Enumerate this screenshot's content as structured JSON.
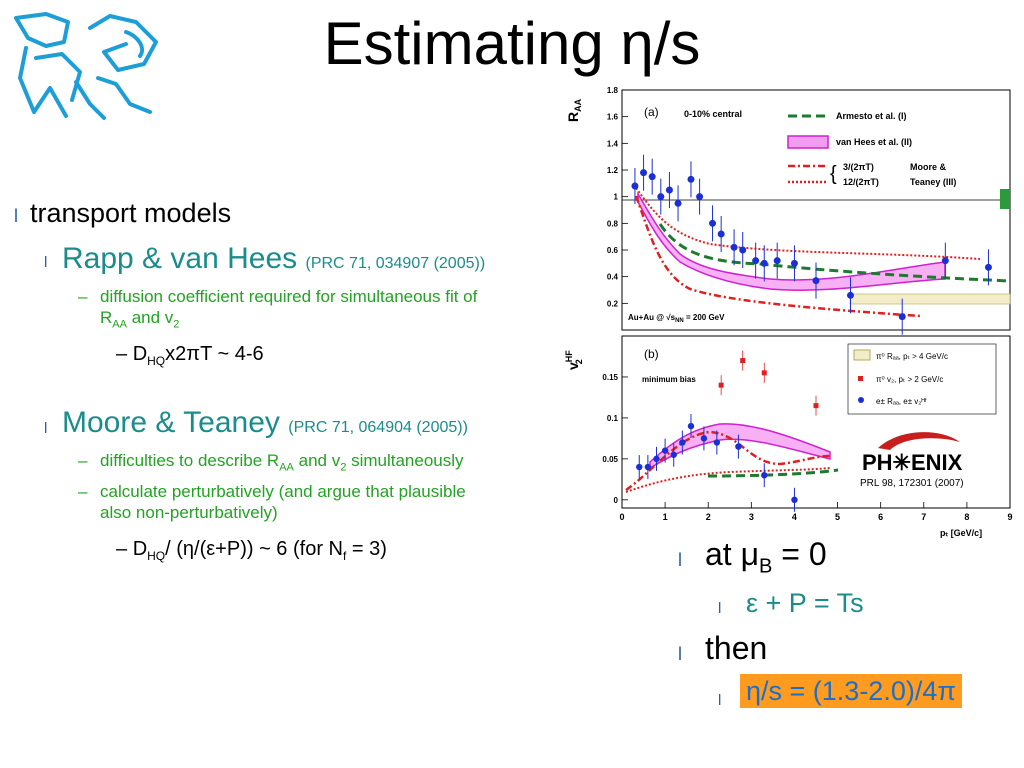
{
  "title": "Estimating η/s",
  "left": {
    "b1": "transport models",
    "rapp": "Rapp & van Hees",
    "rapp_ref": "(PRC 71, 034907 (2005))",
    "rapp_sub1": "diffusion coefficient required for simultaneous fit of",
    "rapp_sub2_a": "R",
    "rapp_sub2_b": "AA",
    "rapp_sub2_c": " and v",
    "rapp_sub2_d": "2",
    "rapp_d_a": "D",
    "rapp_d_b": "HQ",
    "rapp_d_c": "x2πT ~ 4-6",
    "moore": "Moore & Teaney",
    "moore_ref": "(PRC 71, 064904 (2005))",
    "moore_sub1_a": "difficulties to describe R",
    "moore_sub1_b": "AA",
    "moore_sub1_c": " and v",
    "moore_sub1_d": "2",
    "moore_sub1_e": " simultaneously",
    "moore_sub2": "calculate perturbatively (and argue that plausible",
    "moore_sub3": "also non-perturbatively)",
    "moore_d_a": "D",
    "moore_d_b": "HQ",
    "moore_d_c": "/ (η/(ε+P)) ~ 6   (for N",
    "moore_d_d": "f",
    "moore_d_e": " = 3)"
  },
  "right": {
    "at_a": "at μ",
    "at_b": "B",
    "at_c": " = 0",
    "eps": "ε + P = Ts",
    "then": "then",
    "result": "η/s = (1.3-2.0)/4π"
  },
  "bullets": {
    "l1": "l",
    "dash": "–"
  },
  "figure": {
    "top_ylabel": "R",
    "top_ylabel_sub": "AA",
    "top_panel": "(a)",
    "top_centrality": "0-10% central",
    "top_legend": [
      "Armesto et al. (I)",
      "van Hees et al. (II)",
      "3/(2πT)",
      "12/(2πT)",
      "Moore &",
      "Teaney (III)"
    ],
    "top_system": "Au+Au @ √s",
    "top_system_sub": "NN",
    "top_system_end": " = 200 GeV",
    "top_yticks": [
      "1.8",
      "1.6",
      "1.4",
      "1.2",
      "1",
      "0.8",
      "0.6",
      "0.4",
      "0.2"
    ],
    "bot_ylabel": "v",
    "bot_ylabel_sup": "HF",
    "bot_ylabel_sub": "2",
    "bot_panel": "(b)",
    "bot_bias": "minimum bias",
    "bot_yticks": [
      "0.15",
      "0.1",
      "0.05",
      "0"
    ],
    "bot_legend": [
      "π⁰ Rₐₐ, pₜ > 4 GeV/c",
      "π⁰ v₂, pₜ > 2 GeV/c",
      "e± Rₐₐ, e± v₂ᴴᶠ"
    ],
    "phenix": "PH✳ENIX",
    "prl": "PRL 98, 172301 (2007)",
    "xticks": [
      "0",
      "1",
      "2",
      "3",
      "4",
      "5",
      "6",
      "7",
      "8",
      "9"
    ],
    "xlabel": "pₜ [GeV/c]"
  },
  "chart_data": [
    {
      "type": "scatter",
      "title": "",
      "xlabel": "pT [GeV/c]",
      "ylabel": "RAA",
      "xlim": [
        0,
        9
      ],
      "ylim": [
        0,
        1.8
      ],
      "series": [
        {
          "name": "e± RAA",
          "x": [
            0.3,
            0.5,
            0.7,
            0.9,
            1.1,
            1.3,
            1.6,
            1.8,
            2.1,
            2.3,
            2.6,
            2.8,
            3.1,
            3.3,
            3.6,
            4.0,
            4.5,
            5.3,
            6.5,
            7.5,
            8.5
          ],
          "y": [
            1.08,
            1.18,
            1.15,
            1.0,
            1.05,
            0.95,
            1.13,
            1.0,
            0.8,
            0.72,
            0.62,
            0.6,
            0.52,
            0.5,
            0.52,
            0.5,
            0.37,
            0.26,
            0.1,
            0.52,
            0.47
          ]
        },
        {
          "name": "π0 RAA",
          "x": [
            5.5,
            6.5,
            7.5,
            8.5
          ],
          "y": [
            0.24,
            0.22,
            0.22,
            0.22
          ]
        }
      ]
    },
    {
      "type": "scatter",
      "title": "",
      "xlabel": "pT [GeV/c]",
      "ylabel": "v2HF",
      "xlim": [
        0,
        9
      ],
      "ylim": [
        -0.01,
        0.2
      ],
      "series": [
        {
          "name": "e± v2HF",
          "x": [
            0.4,
            0.6,
            0.8,
            1.0,
            1.2,
            1.4,
            1.6,
            1.9,
            2.2,
            2.7,
            3.3,
            4.0
          ],
          "y": [
            0.04,
            0.04,
            0.05,
            0.06,
            0.055,
            0.07,
            0.09,
            0.075,
            0.07,
            0.065,
            0.03,
            0.0
          ]
        },
        {
          "name": "π0 v2, pT > 2 GeV/c",
          "x": [
            2.3,
            2.8,
            3.3,
            4.5
          ],
          "y": [
            0.14,
            0.17,
            0.155,
            0.115
          ]
        }
      ]
    }
  ]
}
